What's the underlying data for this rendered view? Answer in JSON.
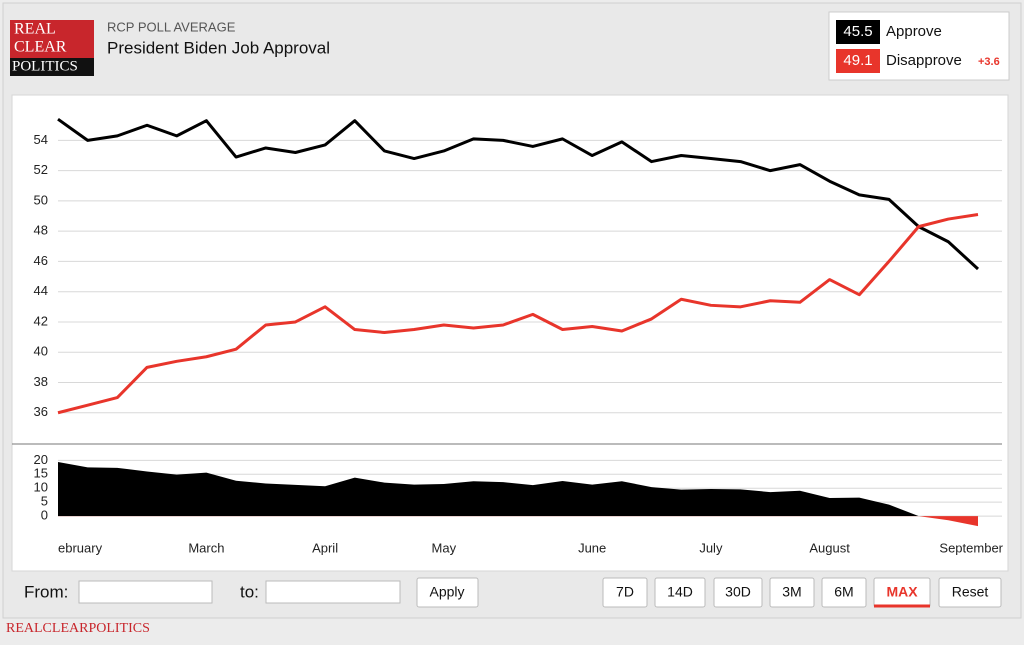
{
  "header": {
    "kicker": "RCP POLL AVERAGE",
    "title": "President Biden Job Approval",
    "logo": [
      "REAL",
      "CLEAR",
      "POLITICS"
    ]
  },
  "legend": {
    "values": [
      "45.5",
      "49.1"
    ],
    "spread": "+3.6"
  },
  "chart_data": [
    {
      "type": "line",
      "categories": [
        null,
        "ebruary",
        null,
        null,
        null,
        "March",
        null,
        null,
        null,
        "April",
        null,
        null,
        null,
        "May",
        null,
        null,
        null,
        null,
        "June",
        null,
        null,
        null,
        "July",
        null,
        null,
        null,
        "August",
        null,
        null,
        null,
        null,
        "September"
      ],
      "series": [
        {
          "name": "Approve",
          "color": "#000000",
          "values": [
            55.4,
            54.0,
            54.3,
            55.0,
            54.3,
            55.3,
            52.9,
            53.5,
            53.2,
            53.7,
            55.3,
            53.3,
            52.8,
            53.3,
            54.1,
            54.0,
            53.6,
            54.1,
            53.0,
            53.9,
            52.6,
            53.0,
            52.8,
            52.6,
            52.0,
            52.4,
            51.3,
            50.4,
            50.1,
            48.3,
            47.3,
            45.5
          ]
        },
        {
          "name": "Disapprove",
          "color": "#e8352b",
          "values": [
            36.0,
            36.5,
            37.0,
            39.0,
            39.4,
            39.7,
            40.2,
            41.8,
            42.0,
            43.0,
            41.5,
            41.3,
            41.5,
            41.8,
            41.6,
            41.8,
            42.5,
            41.5,
            41.7,
            41.4,
            42.2,
            43.5,
            43.1,
            43.0,
            43.4,
            43.3,
            44.8,
            43.8,
            46.0,
            48.3,
            48.8,
            49.1
          ]
        }
      ],
      "ylim": [
        34,
        57
      ],
      "yticks": [
        36,
        38,
        40,
        42,
        44,
        46,
        48,
        50,
        52,
        54
      ],
      "grid": true
    },
    {
      "type": "area",
      "series": [
        {
          "color": "#000000",
          "negative_color": "#e8352b",
          "values": [
            19.4,
            17.5,
            17.3,
            16.0,
            14.9,
            15.6,
            12.7,
            11.7,
            11.2,
            10.7,
            13.8,
            12.0,
            11.3,
            11.5,
            12.5,
            12.2,
            11.1,
            12.6,
            11.3,
            12.5,
            10.4,
            9.5,
            9.7,
            9.6,
            8.6,
            9.1,
            6.5,
            6.6,
            4.1,
            0,
            -1.5,
            -3.6
          ]
        }
      ],
      "ylim": [
        -5,
        23
      ],
      "yticks": [
        0,
        5,
        10,
        15,
        20
      ],
      "grid": true
    }
  ],
  "controls": {
    "from": "From:",
    "to": "to:",
    "apply": "Apply",
    "ranges": [
      "7D",
      "14D",
      "30D",
      "3M",
      "6M",
      "MAX",
      "Reset"
    ],
    "active": "MAX"
  },
  "footer": "REALCLEARPOLITICS"
}
